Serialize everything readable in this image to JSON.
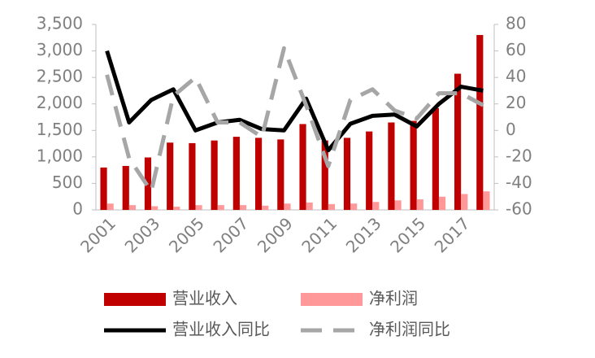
{
  "chart_data": {
    "type": "bar_line",
    "categories": [
      "2001",
      null,
      "2003",
      null,
      "2005",
      null,
      "2007",
      null,
      "2009",
      null,
      "2011",
      null,
      "2013",
      null,
      "2015",
      null,
      "2017",
      null
    ],
    "series": [
      {
        "name": "营业收入",
        "color": "#c00000",
        "kind": "bar",
        "values": [
          800,
          830,
          990,
          1270,
          1260,
          1310,
          1380,
          1360,
          1330,
          1620,
          1310,
          1360,
          1480,
          1650,
          1680,
          1920,
          2570,
          3300
        ]
      },
      {
        "name": "净利润",
        "color": "#ff9999",
        "kind": "bar",
        "values": [
          120,
          90,
          70,
          60,
          90,
          90,
          90,
          80,
          120,
          140,
          110,
          120,
          150,
          180,
          200,
          250,
          300,
          350
        ]
      },
      {
        "name": "营业收入同比",
        "color": "#000000",
        "kind": "line",
        "axis": "y2",
        "values": [
          60,
          6,
          23,
          31,
          0,
          6,
          8,
          1,
          0,
          24,
          -15,
          5,
          11,
          12,
          3,
          20,
          33,
          30
        ]
      },
      {
        "name": "净利润同比",
        "color": "#a6a6a6",
        "kind": "line",
        "dashed": true,
        "axis": "y2",
        "values": [
          42,
          -21,
          -46,
          26,
          40,
          6,
          6,
          -5,
          62,
          19,
          -27,
          23,
          31,
          15,
          9,
          28,
          28,
          19
        ]
      }
    ],
    "ylim": [
      0,
      3500
    ],
    "yticks": [
      0,
      500,
      {
        "value": 1000,
        "label": "1,000"
      },
      {
        "value": 1500,
        "label": "1,500"
      },
      {
        "value": 2000,
        "label": "2,000"
      },
      {
        "value": 2500,
        "label": "2,500"
      },
      {
        "value": 3000,
        "label": "3,000"
      },
      {
        "value": 3500,
        "label": "3,500"
      }
    ],
    "y2lim": [
      -60,
      80
    ],
    "y2ticks": [
      -60,
      -40,
      -20,
      0,
      20,
      40,
      60,
      80
    ]
  }
}
